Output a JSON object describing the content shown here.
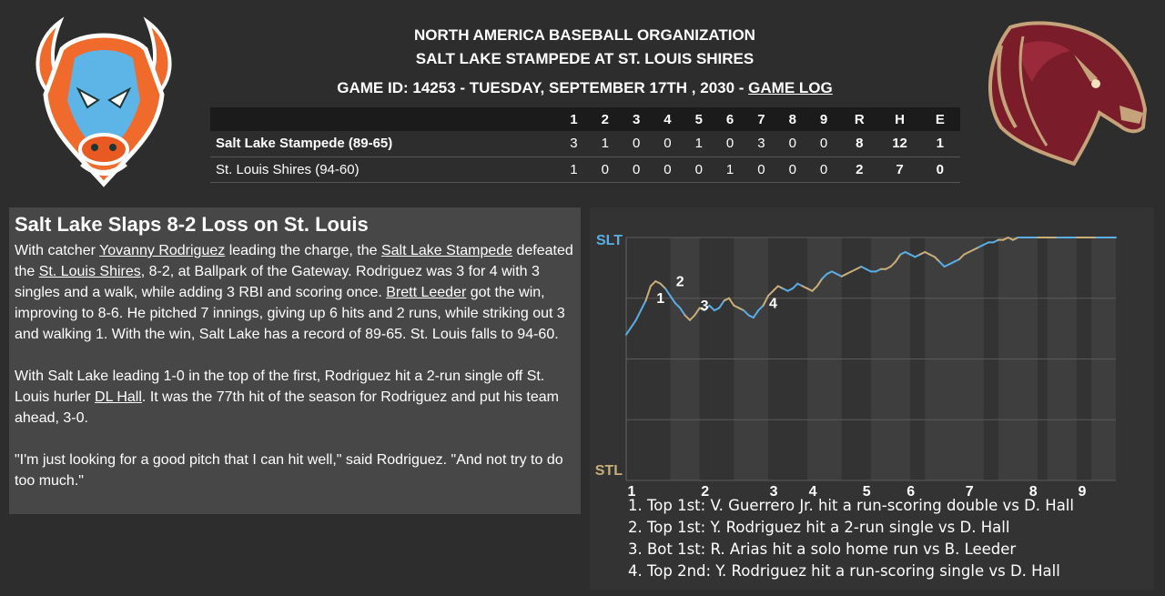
{
  "header": {
    "org": "NORTH AMERICA BASEBALL ORGANIZATION",
    "matchup": "SALT LAKE STAMPEDE AT ST. LOUIS SHIRES",
    "game_info": "GAME ID: 14253 - TUESDAY, SEPTEMBER 17TH , 2030 - ",
    "game_log_link": "GAME LOG"
  },
  "logos": {
    "left": "bison-logo-icon",
    "right": "horse-logo-icon"
  },
  "linescore": {
    "columns": [
      "1",
      "2",
      "3",
      "4",
      "5",
      "6",
      "7",
      "8",
      "9",
      "R",
      "H",
      "E"
    ],
    "rows": [
      {
        "team": "Salt Lake Stampede (89-65)",
        "innings": [
          "3",
          "1",
          "0",
          "0",
          "1",
          "0",
          "3",
          "0",
          "0"
        ],
        "r": "8",
        "h": "12",
        "e": "1"
      },
      {
        "team": "St. Louis Shires (94-60)",
        "innings": [
          "1",
          "0",
          "0",
          "0",
          "0",
          "1",
          "0",
          "0",
          "0"
        ],
        "r": "2",
        "h": "7",
        "e": "0"
      }
    ]
  },
  "story": {
    "headline": "Salt Lake Slaps 8-2 Loss on St. Louis",
    "p1": {
      "a": "With catcher ",
      "link1": "Yovanny Rodriguez",
      "b": " leading the charge, the ",
      "link2": "Salt Lake Stampede",
      "c": " defeated the ",
      "link3": "St. Louis Shires",
      "d": ", 8-2, at Ballpark of the Gateway. Rodriguez was 3 for 4 with 3 singles and a walk, while adding 3 RBI and scoring once. ",
      "link4": "Brett Leeder",
      "e": " got the win, improving to 8-6. He pitched 7 innings, giving up 6 hits and 2 runs, while striking out 3 and walking 1. With the win, Salt Lake has a record of 89-65. St. Louis falls to 94-60."
    },
    "p2": {
      "a": "With Salt Lake leading 1-0 in the top of the first, Rodriguez hit a 2-run single off St. Louis hurler ",
      "link1": "DL Hall",
      "b": ". It was the 77th hit of the season for Rodriguez and put his team ahead, 3-0."
    },
    "p3": "\"I'm just looking for a good pitch that I can hit well,\" said Rodriguez. \"And not try to do too much.\""
  },
  "chart_data": {
    "type": "line",
    "title": "",
    "ylabels": {
      "top": "SLT",
      "bottom": "STL"
    },
    "xlabels": [
      "1",
      "2",
      "3",
      "4",
      "5",
      "6",
      "7",
      "8",
      "9"
    ],
    "colors": {
      "slt": "#5aaee6",
      "stl": "#c9ae7a",
      "grid": "#5a5a5a"
    },
    "markers": [
      {
        "label": "1",
        "x": 0.07,
        "y": 0.73
      },
      {
        "label": "2",
        "x": 0.11,
        "y": 0.8
      },
      {
        "label": "3",
        "x": 0.16,
        "y": 0.7
      },
      {
        "label": "4",
        "x": 0.3,
        "y": 0.71
      }
    ],
    "series": [
      {
        "x": [
          0,
          0.01,
          0.02,
          0.03,
          0.04,
          0.05,
          0.06,
          0.07,
          0.08,
          0.09,
          0.1,
          0.11,
          0.12,
          0.13,
          0.14,
          0.15,
          0.16,
          0.17,
          0.18,
          0.19,
          0.2,
          0.21,
          0.22,
          0.23,
          0.24,
          0.25,
          0.26,
          0.27,
          0.28,
          0.29,
          0.3,
          0.31,
          0.32,
          0.33,
          0.34,
          0.35,
          0.36,
          0.37,
          0.38,
          0.39,
          0.4,
          0.41,
          0.42,
          0.43,
          0.44,
          0.45,
          0.46,
          0.47,
          0.48,
          0.49,
          0.5,
          0.51,
          0.52,
          0.53,
          0.54,
          0.55,
          0.56,
          0.57,
          0.58,
          0.59,
          0.6,
          0.61,
          0.62,
          0.63,
          0.64,
          0.65,
          0.66,
          0.67,
          0.68,
          0.69,
          0.7,
          0.71,
          0.72,
          0.73,
          0.74,
          0.75,
          0.76,
          0.77,
          0.78,
          0.79,
          0.8,
          0.81,
          0.82,
          0.83,
          0.84,
          0.85,
          0.86,
          0.87,
          0.88,
          0.89,
          0.9,
          0.91,
          0.92,
          0.93,
          0.94,
          0.95,
          0.96,
          0.97,
          0.98,
          0.99,
          1.0
        ],
        "y": [
          0.6,
          0.63,
          0.66,
          0.7,
          0.74,
          0.8,
          0.82,
          0.81,
          0.79,
          0.76,
          0.73,
          0.71,
          0.68,
          0.66,
          0.68,
          0.71,
          0.7,
          0.72,
          0.7,
          0.71,
          0.74,
          0.75,
          0.72,
          0.71,
          0.7,
          0.68,
          0.67,
          0.7,
          0.72,
          0.76,
          0.78,
          0.8,
          0.79,
          0.78,
          0.79,
          0.81,
          0.8,
          0.79,
          0.78,
          0.8,
          0.83,
          0.85,
          0.86,
          0.85,
          0.84,
          0.85,
          0.86,
          0.87,
          0.88,
          0.87,
          0.86,
          0.86,
          0.87,
          0.87,
          0.88,
          0.9,
          0.93,
          0.94,
          0.93,
          0.92,
          0.93,
          0.94,
          0.93,
          0.92,
          0.9,
          0.88,
          0.89,
          0.9,
          0.91,
          0.93,
          0.94,
          0.95,
          0.96,
          0.97,
          0.98,
          0.98,
          0.99,
          0.99,
          1.0,
          0.99,
          1.0,
          1.0,
          1.0,
          1.0,
          1.0,
          1.0,
          1.0,
          1.0,
          1.0,
          1.0,
          1.0,
          1.0,
          1.0,
          1.0,
          1.0,
          1.0,
          1.0,
          1.0,
          1.0,
          1.0,
          1.0
        ]
      }
    ]
  },
  "legend": [
    "1. Top 1st: V. Guerrero Jr. hit a run-scoring double vs D. Hall",
    "2. Top 1st: Y. Rodriguez hit a 2-run single vs D. Hall",
    "3. Bot 1st: R. Arias hit a solo home run vs B. Leeder",
    "4. Top 2nd: Y. Rodriguez hit a run-scoring single vs D. Hall"
  ]
}
